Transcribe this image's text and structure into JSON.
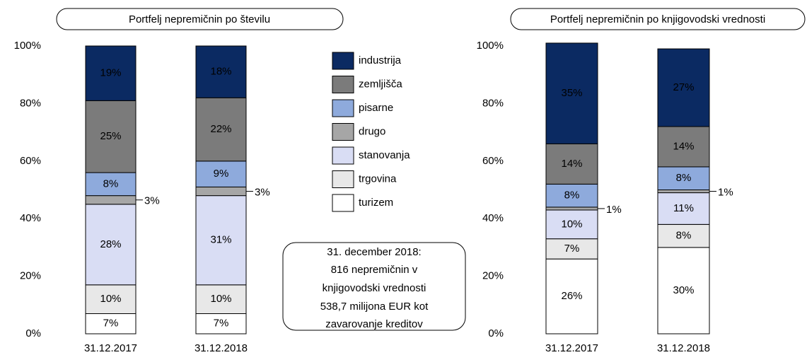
{
  "chart_data": [
    {
      "type": "stacked_bar",
      "title": "Portfelj nepremičnin po številu",
      "categories": [
        "31.12.2017",
        "31.12.2018"
      ],
      "ylim": [
        0,
        100
      ],
      "yticks": [
        {
          "value": 0,
          "label": "0%"
        },
        {
          "value": 20,
          "label": "20%"
        },
        {
          "value": 40,
          "label": "40%"
        },
        {
          "value": 60,
          "label": "60%"
        },
        {
          "value": 80,
          "label": "80%"
        },
        {
          "value": 100,
          "label": "100%"
        }
      ],
      "series": [
        {
          "name": "turizem",
          "color": "#ffffff",
          "values": [
            7,
            7
          ],
          "value_labels": [
            "7%",
            "7%"
          ]
        },
        {
          "name": "trgovina",
          "color": "#e8e8e8",
          "values": [
            10,
            10
          ],
          "value_labels": [
            "10%",
            "10%"
          ]
        },
        {
          "name": "stanovanja",
          "color": "#d9ddf4",
          "values": [
            28,
            31
          ],
          "value_labels": [
            "28%",
            "31%"
          ]
        },
        {
          "name": "drugo",
          "color": "#a6a6a6",
          "values": [
            3,
            3
          ],
          "value_labels": [
            "3%",
            "3%"
          ]
        },
        {
          "name": "pisarne",
          "color": "#8eaadc",
          "values": [
            8,
            9
          ],
          "value_labels": [
            "8%",
            "9%"
          ]
        },
        {
          "name": "zemljišča",
          "color": "#7b7b7b",
          "values": [
            25,
            22
          ],
          "value_labels": [
            "25%",
            "22%"
          ]
        },
        {
          "name": "industrija",
          "color": "#0b2a62",
          "values": [
            19,
            18
          ],
          "value_labels": [
            "19%",
            "18%"
          ]
        }
      ]
    },
    {
      "type": "stacked_bar",
      "title": "Portfelj nepremičnin po knjigovodski vrednosti",
      "categories": [
        "31.12.2017",
        "31.12.2018"
      ],
      "ylim": [
        0,
        100
      ],
      "yticks": [
        {
          "value": 0,
          "label": "0%"
        },
        {
          "value": 20,
          "label": "20%"
        },
        {
          "value": 40,
          "label": "40%"
        },
        {
          "value": 60,
          "label": "60%"
        },
        {
          "value": 80,
          "label": "80%"
        },
        {
          "value": 100,
          "label": "100%"
        }
      ],
      "series": [
        {
          "color": "#ffffff",
          "values": [
            26,
            30
          ],
          "value_labels": [
            "26%",
            "30%"
          ]
        },
        {
          "color": "#e8e8e8",
          "values": [
            7,
            8
          ],
          "value_labels": [
            "7%",
            "8%"
          ]
        },
        {
          "color": "#d9ddf4",
          "values": [
            10,
            11
          ],
          "value_labels": [
            "10%",
            "11%"
          ]
        },
        {
          "color": "#a6a6a6",
          "values": [
            1,
            1
          ],
          "value_labels": [
            "1%",
            "1%"
          ]
        },
        {
          "color": "#8eaadc",
          "values": [
            8,
            8
          ],
          "value_labels": [
            "8%",
            "8%"
          ]
        },
        {
          "color": "#7b7b7b",
          "values": [
            14,
            14
          ],
          "value_labels": [
            "14%",
            "14%"
          ]
        },
        {
          "color": "#0b2a62",
          "values": [
            35,
            27
          ],
          "value_labels": [
            "35%",
            "27%"
          ]
        }
      ]
    }
  ],
  "note": [
    "31. december 2018:",
    "816 nepremičnin v",
    "knjigovodski vrednosti",
    "538,7 milijona EUR kot",
    "zavarovanje kreditov"
  ]
}
